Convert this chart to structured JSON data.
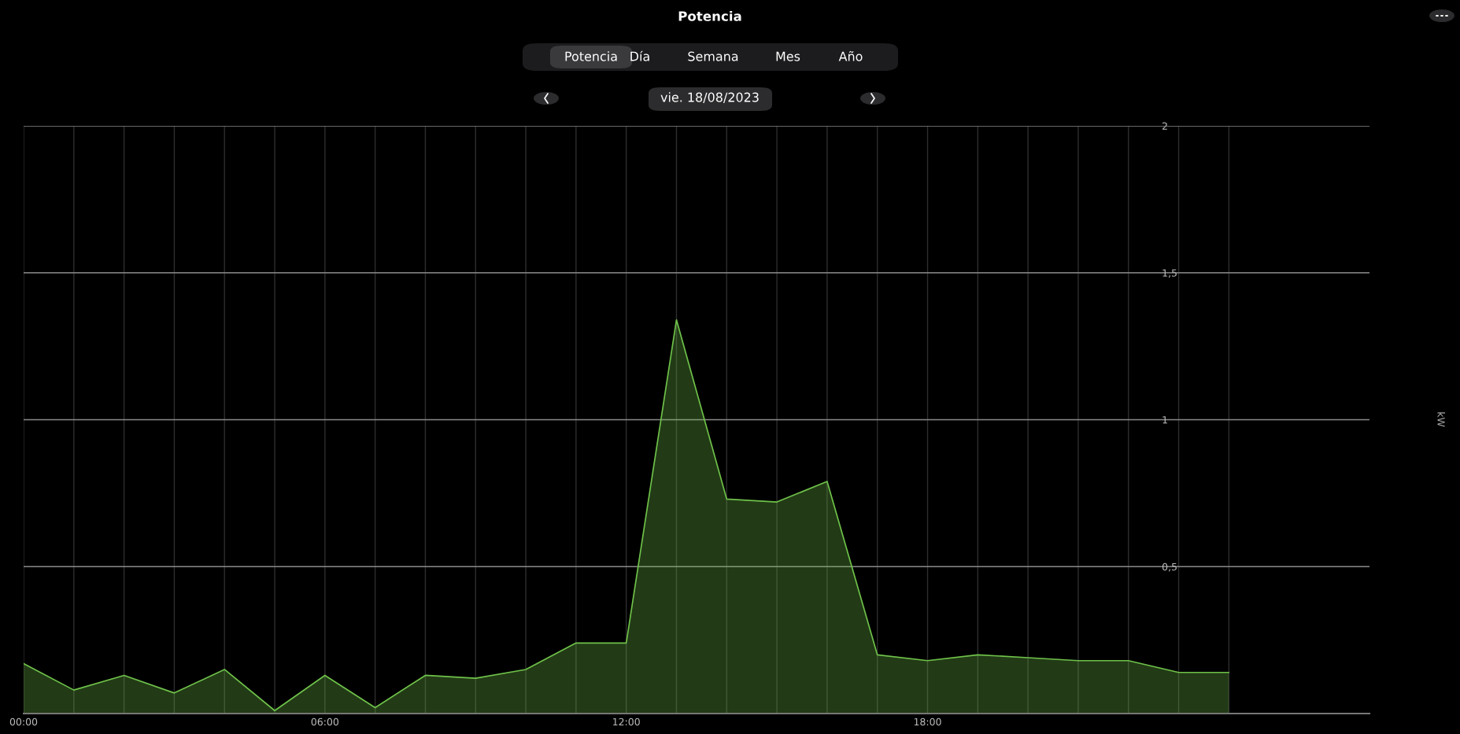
{
  "chart_data": {
    "type": "area",
    "title": "Potencia",
    "subtitle": "vie. 18/08/2023",
    "annotations": [
      "Potencia",
      "Día",
      "Semana",
      "Mes",
      "Año",
      "kW"
    ],
    "x": [
      0,
      1,
      2,
      3,
      4,
      5,
      6,
      7,
      8,
      9,
      10,
      11,
      12,
      13,
      14,
      15,
      16,
      17,
      18,
      19,
      20,
      21,
      22,
      23,
      24
    ],
    "series": [
      {
        "color": "#6fc24a",
        "values": [
          0.17,
          0.08,
          0.13,
          0.07,
          0.15,
          0.01,
          0.13,
          0.02,
          0.13,
          0.12,
          0.15,
          0.24,
          0.24,
          1.34,
          0.73,
          0.72,
          0.79,
          0.2,
          0.18,
          0.2,
          0.19,
          0.18,
          0.18,
          0.14,
          0.14
        ]
      }
    ],
    "xlim": [
      0,
      26.8
    ],
    "xticks": [
      {
        "value": 0,
        "label": "00:00"
      },
      {
        "value": 1,
        "label": null
      },
      {
        "value": 2,
        "label": null
      },
      {
        "value": 3,
        "label": null
      },
      {
        "value": 4,
        "label": null
      },
      {
        "value": 5,
        "label": null
      },
      {
        "value": 6,
        "label": "06:00"
      },
      {
        "value": 7,
        "label": null
      },
      {
        "value": 8,
        "label": null
      },
      {
        "value": 9,
        "label": null
      },
      {
        "value": 10,
        "label": null
      },
      {
        "value": 11,
        "label": null
      },
      {
        "value": 12,
        "label": "12:00"
      },
      {
        "value": 13,
        "label": null
      },
      {
        "value": 14,
        "label": null
      },
      {
        "value": 15,
        "label": null
      },
      {
        "value": 16,
        "label": null
      },
      {
        "value": 17,
        "label": null
      },
      {
        "value": 18,
        "label": "18:00"
      },
      {
        "value": 19,
        "label": null
      },
      {
        "value": 20,
        "label": null
      },
      {
        "value": 21,
        "label": null
      },
      {
        "value": 22,
        "label": null
      },
      {
        "value": 23,
        "label": null
      },
      {
        "value": 24,
        "label": null
      }
    ],
    "ylim": [
      0,
      2
    ],
    "yticks": [
      {
        "value": 0,
        "label": null
      },
      {
        "value": 0.5,
        "label": "0,5"
      },
      {
        "value": 1,
        "label": "1"
      },
      {
        "value": 1.5,
        "label": "1,5"
      },
      {
        "value": 2,
        "label": "2"
      }
    ],
    "grid": true
  }
}
